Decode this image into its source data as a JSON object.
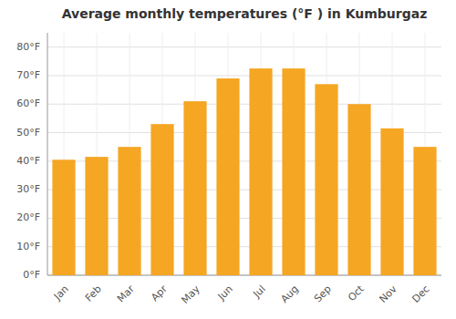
{
  "chart_data": {
    "type": "bar",
    "title": "Average monthly temperatures (°F ) in Kumburgaz",
    "categories": [
      "Jan",
      "Feb",
      "Mar",
      "Apr",
      "May",
      "Jun",
      "Jul",
      "Aug",
      "Sep",
      "Oct",
      "Nov",
      "Dec"
    ],
    "values": [
      40.5,
      41.5,
      45.0,
      53.0,
      61.0,
      69.0,
      72.5,
      72.5,
      67.0,
      60.0,
      51.5,
      45.0
    ],
    "color": "#F5A623",
    "ylim": [
      0,
      85
    ],
    "yticks": [
      {
        "value": 0,
        "label": "0°F"
      },
      {
        "value": 10,
        "label": "10°F"
      },
      {
        "value": 20,
        "label": "20°F"
      },
      {
        "value": 30,
        "label": "30°F"
      },
      {
        "value": 40,
        "label": "40°F"
      },
      {
        "value": 50,
        "label": "50°F"
      },
      {
        "value": 60,
        "label": "60°F"
      },
      {
        "value": 70,
        "label": "70°F"
      },
      {
        "value": 80,
        "label": "80°F"
      }
    ],
    "grid": true
  }
}
